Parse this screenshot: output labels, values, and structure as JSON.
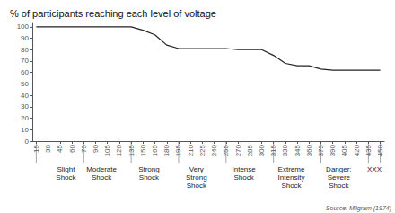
{
  "chart_data": {
    "type": "line",
    "title": "% of participants reaching each level of voltage",
    "x": [
      15,
      30,
      45,
      60,
      75,
      90,
      105,
      120,
      135,
      150,
      165,
      180,
      195,
      210,
      225,
      240,
      255,
      270,
      285,
      300,
      315,
      330,
      345,
      360,
      375,
      390,
      405,
      420,
      435,
      450
    ],
    "values": [
      100,
      100,
      100,
      100,
      100,
      100,
      100,
      100,
      100,
      97,
      93,
      84,
      81,
      81,
      81,
      81,
      81,
      80,
      80,
      80,
      75,
      68,
      66,
      66,
      63,
      62,
      62,
      62,
      62,
      62
    ],
    "color": "#222222",
    "xlim": [
      10,
      455
    ],
    "xticks": [
      15,
      30,
      45,
      60,
      75,
      90,
      105,
      120,
      135,
      150,
      165,
      180,
      195,
      210,
      225,
      240,
      255,
      270,
      285,
      300,
      315,
      330,
      345,
      360,
      375,
      390,
      405,
      420,
      435,
      450
    ],
    "ylim": [
      0,
      103
    ],
    "yticks": [
      0,
      10,
      20,
      30,
      40,
      50,
      60,
      70,
      80,
      90,
      100
    ],
    "grid": false,
    "group_labels": [
      {
        "label": "Slight\nShock",
        "x": 52.5
      },
      {
        "label": "Moderate\nShock",
        "x": 97.5
      },
      {
        "label": "Strong\nShock",
        "x": 157.5
      },
      {
        "label": "Very\nStrong\nShock",
        "x": 217.5
      },
      {
        "label": "Intense\nShock",
        "x": 277.5
      },
      {
        "label": "Extreme\nIntensity\nShock",
        "x": 337.5
      },
      {
        "label": "Danger:\nSevere\nShock",
        "x": 397.5
      },
      {
        "label": "XXX",
        "x": 442.5
      }
    ],
    "group_boundaries": [
      15,
      75,
      135,
      195,
      255,
      315,
      375,
      435,
      450
    ],
    "source": "Source: Milgram (1974)"
  }
}
